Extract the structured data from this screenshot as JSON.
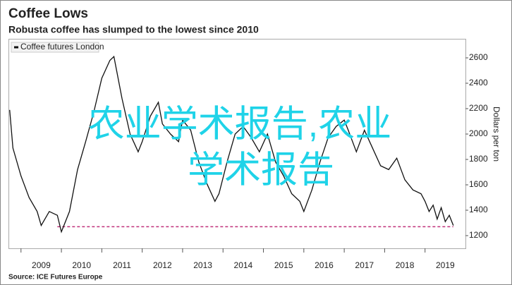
{
  "chart_data": {
    "type": "line",
    "title": "Coffee Lows",
    "subtitle": "Robusta coffee has slumped to the lowest since 2010",
    "y_axis_label": "Dollars per ton",
    "source": "Source: ICE Futures Europe",
    "watermark": "农业学术报告,农业学术报告",
    "x": [
      2008.72,
      2008.8,
      2009.0,
      2009.2,
      2009.4,
      2009.5,
      2009.7,
      2009.9,
      2010.0,
      2010.2,
      2010.4,
      2010.6,
      2010.8,
      2011.0,
      2011.2,
      2011.3,
      2011.5,
      2011.7,
      2011.9,
      2012.0,
      2012.2,
      2012.4,
      2012.5,
      2012.7,
      2012.9,
      2013.0,
      2013.2,
      2013.4,
      2013.6,
      2013.8,
      2013.9,
      2014.1,
      2014.3,
      2014.5,
      2014.7,
      2014.9,
      2015.1,
      2015.3,
      2015.5,
      2015.7,
      2015.9,
      2016.0,
      2016.2,
      2016.4,
      2016.6,
      2016.8,
      2017.0,
      2017.1,
      2017.3,
      2017.5,
      2017.7,
      2017.9,
      2018.1,
      2018.3,
      2018.5,
      2018.7,
      2018.9,
      2019.0,
      2019.1,
      2019.2,
      2019.3,
      2019.4,
      2019.5,
      2019.6,
      2019.7
    ],
    "series": [
      {
        "name": "Coffee futures London",
        "color": "#111111",
        "values": [
          2190,
          1890,
          1670,
          1500,
          1390,
          1280,
          1390,
          1360,
          1230,
          1390,
          1720,
          1940,
          2170,
          2440,
          2580,
          2610,
          2280,
          2000,
          1860,
          1940,
          2140,
          2250,
          2080,
          2000,
          1940,
          2110,
          2030,
          1780,
          1610,
          1470,
          1530,
          1780,
          2000,
          2060,
          1970,
          1860,
          2000,
          1780,
          1670,
          1530,
          1470,
          1390,
          1560,
          1780,
          1970,
          2060,
          2110,
          2030,
          1860,
          2030,
          1890,
          1750,
          1720,
          1810,
          1640,
          1560,
          1530,
          1470,
          1390,
          1440,
          1330,
          1420,
          1310,
          1360,
          1280
        ]
      }
    ],
    "reference_line": {
      "value": 1270,
      "from": 2009.9,
      "to": 2019.7,
      "color": "#c0307a"
    },
    "xlim": [
      2008.69,
      2020.0
    ],
    "xticks": [
      2009,
      2010,
      2011,
      2012,
      2013,
      2014,
      2015,
      2016,
      2017,
      2018,
      2019
    ],
    "ylim": [
      1100,
      2750
    ],
    "yticks": [
      1200,
      1400,
      1600,
      1800,
      2000,
      2200,
      2400,
      2600
    ]
  }
}
